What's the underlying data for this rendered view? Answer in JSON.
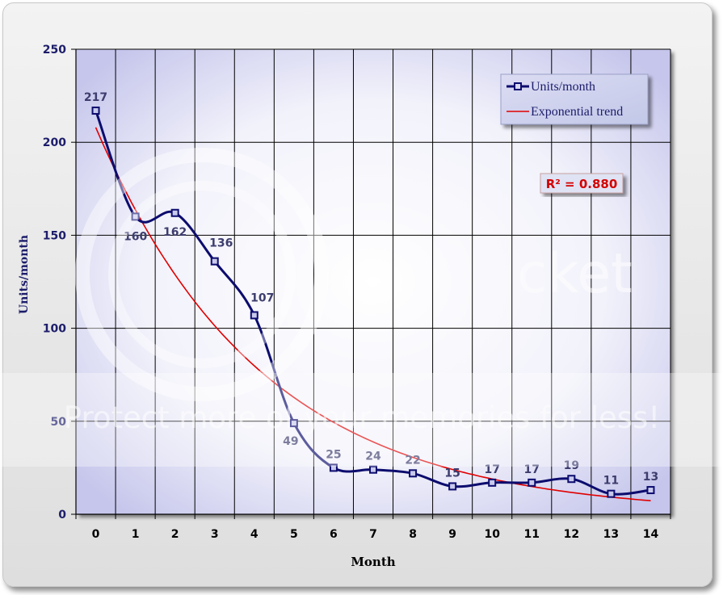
{
  "chart_data": {
    "type": "line",
    "title": "",
    "xlabel": "Month",
    "ylabel": "Units/month",
    "x": [
      0,
      1,
      2,
      3,
      4,
      5,
      6,
      7,
      8,
      9,
      10,
      11,
      12,
      13,
      14
    ],
    "xlim": [
      -0.5,
      14.5
    ],
    "ylim": [
      0,
      250
    ],
    "yticks": [
      0,
      50,
      100,
      150,
      200,
      250
    ],
    "grid": true,
    "legend_position": "top-right",
    "series": [
      {
        "name": "Units/month",
        "values": [
          217,
          160,
          162,
          136,
          107,
          49,
          25,
          24,
          22,
          15,
          17,
          17,
          19,
          11,
          13
        ],
        "color": "#0c0c6e",
        "marker": "square"
      },
      {
        "name": "Exponential trend",
        "type": "exponential-fit",
        "a": 208,
        "b": 0.2395,
        "color": "#e00000"
      }
    ],
    "annotation": "R² = 0.880"
  },
  "watermark": {
    "text": "Protect more of your memories for less!",
    "brand_fragment": "cket"
  },
  "colors": {
    "plot_bg_edge": "#c9c9ee",
    "plot_bg_center": "#ffffff",
    "grid": "#000000",
    "frame": "#e9e9e9"
  }
}
